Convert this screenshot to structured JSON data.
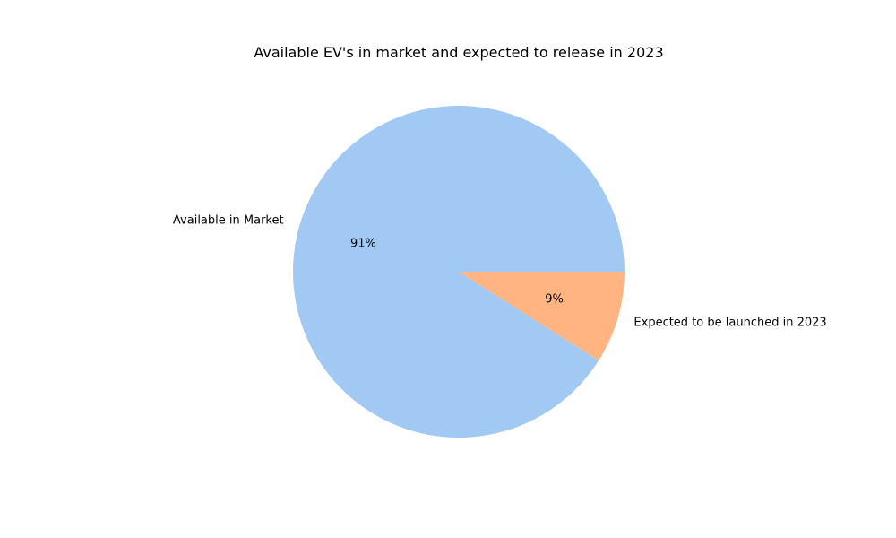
{
  "chart_data": {
    "type": "pie",
    "title": "Available EV's in market and expected to release in 2023",
    "slices": [
      {
        "label": "Available in Market",
        "value": 91,
        "pct_label": "91%",
        "color": "#a1c9f4"
      },
      {
        "label": "Expected to be launched in 2023",
        "value": 9,
        "pct_label": "9%",
        "color": "#ffb482"
      }
    ]
  }
}
